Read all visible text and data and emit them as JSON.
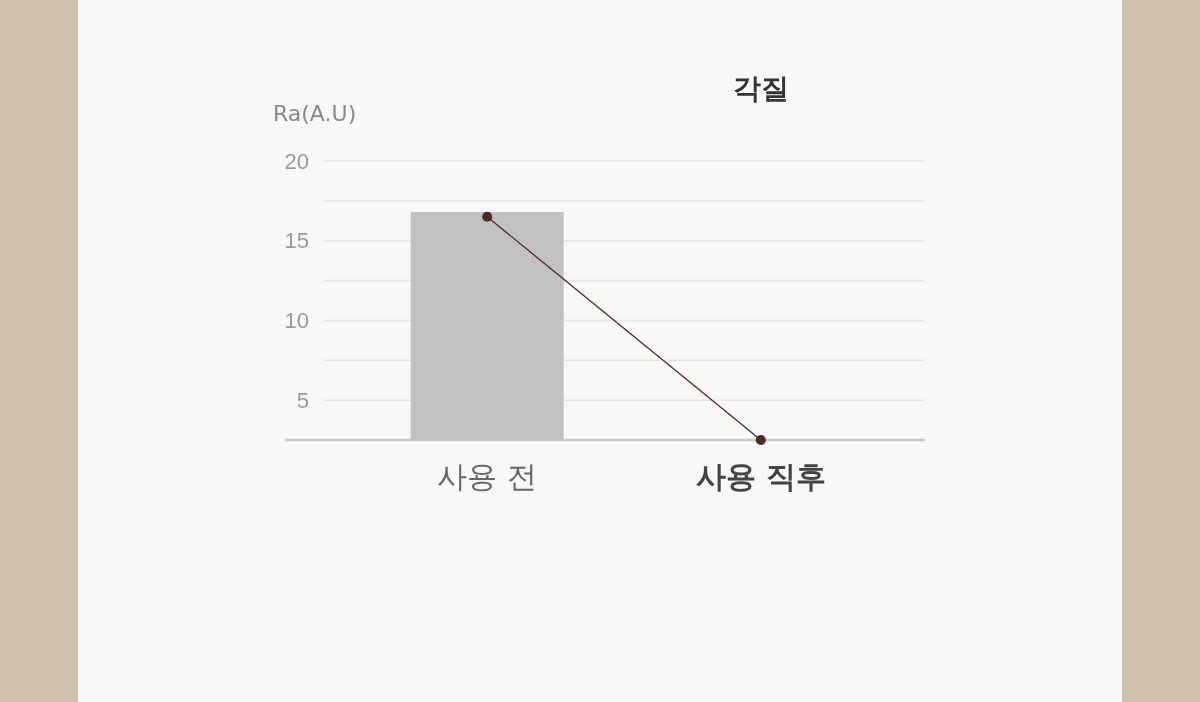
{
  "chart_data": {
    "type": "bar",
    "title": "각질",
    "ylabel": "Ra(A.U)",
    "categories": [
      "사용 전",
      "사용 직후"
    ],
    "series": [
      {
        "color": "#c1c1c1",
        "values": [
          16.8,
          null
        ]
      },
      {
        "type": "line",
        "color": "#4a2c24",
        "values": [
          16.5,
          2.5
        ],
        "marker": "circle"
      }
    ],
    "ylim": [
      2.5,
      20
    ],
    "yticks": [
      5,
      {
        "value": 7.5,
        "label": null
      },
      10,
      {
        "value": 12.5,
        "label": null
      },
      15,
      {
        "value": 17.5,
        "label": null
      },
      20
    ],
    "grid": "y"
  }
}
